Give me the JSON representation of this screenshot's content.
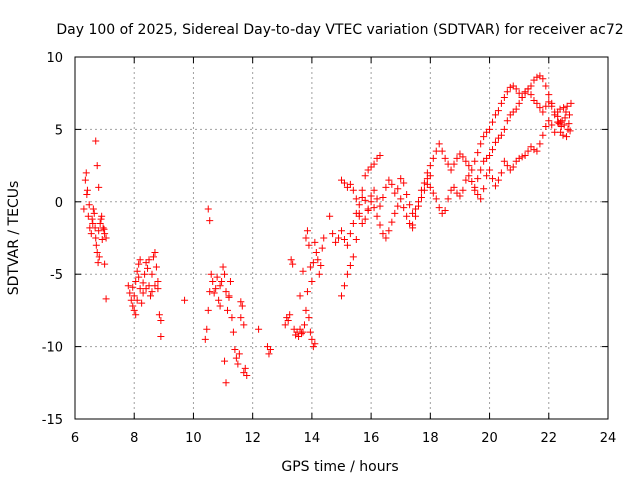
{
  "chart_data": {
    "type": "scatter",
    "title": "Day 100 of 2025, Sidereal Day-to-day VTEC variation (SDTVAR) for receiver ac72",
    "xlabel": "GPS time / hours",
    "ylabel": "SDTVAR / TECUs",
    "xlim": [
      6,
      24
    ],
    "ylim": [
      -15,
      10
    ],
    "x_ticks": [
      6,
      8,
      10,
      12,
      14,
      16,
      18,
      20,
      22,
      24
    ],
    "y_ticks": [
      -15,
      -10,
      -5,
      0,
      5,
      10
    ],
    "x_tick_labels": [
      "6",
      "8",
      "10",
      "12",
      "14",
      "16",
      "18",
      "20",
      "22",
      "24"
    ],
    "y_tick_labels": [
      "-15",
      "-10",
      "-5",
      "0",
      "5",
      "10"
    ],
    "grid": true,
    "marker": "+",
    "series": [
      {
        "name": "SDTVAR",
        "color": "#ff0000",
        "segments": [
          {
            "x": [
              6.3,
              6.35,
              6.4,
              6.45,
              6.5,
              6.55,
              6.6,
              6.65,
              6.7,
              6.75,
              6.8,
              6.85,
              6.9,
              6.95,
              7.0,
              7.05
            ],
            "y": [
              -0.5,
              1.5,
              0.5,
              -1.0,
              -1.8,
              -2.2,
              -1.5,
              -0.8,
              -2.5,
              -3.5,
              -2.0,
              -1.5,
              -1.0,
              -1.8,
              -2.2,
              -2.5
            ]
          },
          {
            "x": [
              6.38,
              6.42,
              6.48,
              6.58,
              6.62,
              6.68,
              6.72,
              6.78,
              6.82,
              6.88,
              6.92,
              6.98
            ],
            "y": [
              2.0,
              0.8,
              -0.2,
              -1.2,
              -0.5,
              -1.8,
              -3.0,
              -4.2,
              -3.8,
              -1.2,
              -2.6,
              -1.9
            ]
          },
          {
            "x": [
              6.7,
              6.75,
              6.8,
              7.0,
              7.05
            ],
            "y": [
              4.2,
              2.5,
              1.0,
              -4.3,
              -6.7
            ]
          },
          {
            "x": [
              7.8,
              7.85,
              7.9,
              7.95,
              8.0,
              8.05,
              8.1,
              8.15,
              8.2,
              8.25,
              8.3,
              8.35,
              8.4,
              8.45,
              8.5,
              8.55,
              8.6,
              8.65,
              8.7,
              8.75,
              8.8,
              8.85,
              8.9
            ],
            "y": [
              -5.8,
              -6.3,
              -6.8,
              -7.2,
              -6.5,
              -5.5,
              -4.8,
              -5.2,
              -6.0,
              -7.0,
              -6.3,
              -5.0,
              -4.2,
              -4.6,
              -5.8,
              -6.5,
              -5.0,
              -3.8,
              -3.5,
              -4.5,
              -5.5,
              -7.8,
              -8.2
            ]
          },
          {
            "x": [
              7.95,
              8.0,
              8.05,
              8.1,
              8.15,
              8.2,
              8.3,
              8.4,
              8.5,
              8.6,
              8.7,
              8.8,
              8.9
            ],
            "y": [
              -5.9,
              -7.5,
              -7.8,
              -6.8,
              -4.3,
              -4.0,
              -5.6,
              -6.0,
              -4.0,
              -6.2,
              -5.8,
              -6.0,
              -9.3
            ]
          },
          {
            "x": [
              9.7
            ],
            "y": [
              -6.8
            ]
          },
          {
            "x": [
              10.4,
              10.45,
              10.5,
              10.55,
              10.6,
              10.65,
              10.7,
              10.75,
              10.8,
              10.85,
              10.9,
              10.95,
              11.0,
              11.05,
              11.1,
              11.15,
              11.2,
              11.25,
              11.3,
              11.35,
              11.4,
              11.45,
              11.5,
              11.55,
              11.6,
              11.65,
              11.7,
              11.75,
              11.8
            ],
            "y": [
              -9.5,
              -8.8,
              -7.5,
              -6.2,
              -5.0,
              -5.5,
              -6.3,
              -6.0,
              -5.2,
              -6.8,
              -7.2,
              -5.5,
              -4.5,
              -5.0,
              -6.2,
              -7.5,
              -6.5,
              -5.5,
              -8.0,
              -9.0,
              -10.2,
              -10.8,
              -11.2,
              -10.5,
              -8.0,
              -7.2,
              -8.5,
              -11.5,
              -12.0
            ]
          },
          {
            "x": [
              10.5,
              10.55,
              10.9,
              11.05,
              11.1,
              11.2,
              11.6,
              11.7
            ],
            "y": [
              -0.5,
              -1.3,
              -5.8,
              -11.0,
              -12.5,
              -6.6,
              -6.9,
              -11.8
            ]
          },
          {
            "x": [
              12.2,
              12.5,
              12.55,
              12.6
            ],
            "y": [
              -8.8,
              -10.0,
              -10.5,
              -10.2
            ]
          },
          {
            "x": [
              13.1,
              13.15,
              13.2,
              13.25,
              13.3,
              13.35,
              13.4,
              13.45,
              13.5,
              13.55,
              13.6,
              13.65,
              13.7,
              13.75,
              13.8,
              13.85,
              13.9,
              13.95,
              14.0,
              14.05,
              14.1
            ],
            "y": [
              -8.5,
              -8.0,
              -8.2,
              -7.8,
              -4.0,
              -4.3,
              -8.8,
              -9.2,
              -9.0,
              -9.3,
              -8.8,
              -9.1,
              -9.0,
              -8.5,
              -7.5,
              -6.2,
              -8.0,
              -9.0,
              -9.5,
              -10.0,
              -9.8
            ]
          },
          {
            "x": [
              13.6,
              13.7,
              13.8,
              13.85,
              13.9,
              13.95,
              14.0,
              14.05,
              14.1,
              14.15,
              14.2,
              14.25,
              14.3,
              14.35,
              14.4
            ],
            "y": [
              -6.5,
              -4.8,
              -2.5,
              -2.0,
              -3.0,
              -4.5,
              -5.5,
              -4.2,
              -2.8,
              -3.5,
              -4.0,
              -5.0,
              -4.4,
              -3.2,
              -2.5
            ]
          },
          {
            "x": [
              14.6,
              14.7,
              14.8,
              14.9,
              15.0,
              15.1,
              15.2,
              15.3,
              15.4,
              15.5,
              15.6,
              15.7,
              15.8,
              15.9,
              16.0,
              16.1,
              16.2,
              16.3,
              16.4,
              16.5,
              16.6,
              16.7,
              16.8,
              16.9,
              17.0,
              17.1,
              17.2,
              17.3,
              17.4,
              17.5,
              17.6,
              17.7,
              17.8,
              17.9,
              18.0
            ],
            "y": [
              -1.0,
              -2.2,
              -2.8,
              -2.5,
              -2.0,
              -2.6,
              -3.0,
              -2.2,
              -1.5,
              -0.8,
              -0.2,
              0.3,
              0.1,
              -0.5,
              0.4,
              0.8,
              0.2,
              -0.3,
              0.3,
              1.0,
              1.5,
              1.2,
              0.6,
              0.9,
              1.6,
              1.3,
              0.5,
              -0.2,
              -0.8,
              -0.5,
              0.0,
              0.8,
              1.3,
              1.6,
              1.8
            ]
          },
          {
            "x": [
              15.0,
              15.1,
              15.2,
              15.3,
              15.4,
              15.5,
              15.6,
              15.7,
              15.8,
              15.9,
              16.0,
              16.1,
              16.2,
              16.3,
              16.4,
              16.5,
              16.6,
              16.7,
              16.8,
              16.9,
              17.0,
              17.1,
              17.2,
              17.3,
              17.4
            ],
            "y": [
              1.5,
              1.3,
              1.0,
              1.2,
              0.8,
              0.2,
              -0.8,
              -1.5,
              -1.2,
              -0.6,
              0.0,
              -0.4,
              -1.0,
              -1.6,
              -2.2,
              -2.5,
              -2.0,
              -1.4,
              -0.8,
              -0.3,
              0.2,
              -0.4,
              -1.0,
              -1.5,
              -1.8
            ]
          },
          {
            "x": [
              15.0,
              15.1,
              15.2,
              15.3,
              15.4,
              15.5,
              15.6,
              15.7,
              15.8,
              15.9,
              16.0,
              16.1,
              16.2,
              16.3
            ],
            "y": [
              -6.5,
              -5.8,
              -5.0,
              -4.4,
              -3.8,
              -2.6,
              -1.0,
              0.8,
              1.8,
              2.2,
              2.4,
              2.6,
              3.0,
              3.2
            ]
          },
          {
            "x": [
              17.9,
              18.0,
              18.1,
              18.2,
              18.3,
              18.4,
              18.5,
              18.6,
              18.7,
              18.8,
              18.9,
              19.0,
              19.1,
              19.2,
              19.3,
              19.4,
              19.5,
              19.6,
              19.7,
              19.8,
              19.9,
              20.0,
              20.1,
              20.2,
              20.3,
              20.4,
              20.5,
              20.6,
              20.7,
              20.8,
              20.9,
              21.0,
              21.1,
              21.2,
              21.3,
              21.4,
              21.5,
              21.6,
              21.7,
              21.8,
              21.9,
              22.0,
              22.1,
              22.2,
              22.3,
              22.4
            ],
            "y": [
              2.0,
              2.5,
              3.0,
              3.5,
              4.0,
              3.5,
              3.0,
              2.6,
              2.2,
              2.6,
              3.0,
              3.3,
              3.1,
              2.8,
              2.5,
              2.2,
              2.8,
              3.4,
              4.0,
              4.5,
              4.8,
              5.0,
              5.5,
              6.0,
              6.3,
              6.8,
              7.2,
              7.6,
              7.9,
              8.0,
              7.8,
              7.5,
              7.2,
              7.6,
              7.8,
              8.0,
              8.4,
              8.6,
              8.7,
              8.5,
              8.0,
              7.4,
              6.8,
              6.2,
              5.9,
              5.5
            ]
          },
          {
            "x": [
              17.4,
              17.5,
              17.6,
              17.7,
              17.8,
              17.9,
              18.0,
              18.1,
              18.2,
              18.3,
              18.4,
              18.5,
              18.6,
              18.7,
              18.8,
              18.9,
              19.0,
              19.1,
              19.2,
              19.3,
              19.4,
              19.5,
              19.6,
              19.7,
              19.8,
              19.9,
              20.0,
              20.1,
              20.2,
              20.3,
              20.4,
              20.5,
              20.6,
              20.7,
              20.8,
              20.9,
              21.0,
              21.1,
              21.2,
              21.3,
              21.4,
              21.5,
              21.6,
              21.7,
              21.8,
              21.9,
              22.0,
              22.1,
              22.2,
              22.3
            ],
            "y": [
              -1.6,
              -1.0,
              -0.3,
              0.3,
              0.8,
              1.2,
              1.0,
              0.6,
              0.2,
              -0.4,
              -0.8,
              -0.6,
              0.2,
              0.8,
              1.0,
              0.6,
              0.4,
              0.8,
              1.5,
              1.8,
              1.4,
              1.0,
              1.6,
              2.2,
              2.8,
              3.0,
              3.2,
              3.6,
              4.1,
              4.4,
              4.6,
              5.0,
              5.6,
              6.0,
              6.2,
              6.4,
              6.8,
              7.2,
              7.5,
              7.8,
              7.4,
              7.0,
              6.8,
              6.5,
              6.2,
              6.6,
              6.9,
              6.6,
              6.0,
              5.5
            ]
          },
          {
            "x": [
              19.5,
              19.6,
              19.7,
              19.8,
              19.9,
              20.0,
              20.1,
              20.2,
              20.3,
              20.4,
              20.5,
              20.6,
              20.7,
              20.8,
              20.9,
              21.0,
              21.1,
              21.2,
              21.3,
              21.4,
              21.5,
              21.6,
              21.7,
              21.8,
              21.9,
              22.0,
              22.1,
              22.2
            ],
            "y": [
              0.8,
              0.5,
              0.2,
              0.9,
              1.8,
              2.2,
              1.6,
              1.1,
              1.5,
              2.0,
              2.8,
              2.5,
              2.2,
              2.4,
              2.8,
              3.0,
              3.1,
              3.2,
              3.5,
              3.8,
              3.6,
              3.5,
              4.0,
              4.6,
              5.2,
              5.6,
              5.3,
              4.8
            ]
          },
          {
            "x": [
              22.3,
              22.35,
              22.4,
              22.45,
              22.5,
              22.55,
              22.6,
              22.65,
              22.7,
              22.75
            ],
            "y": [
              6.2,
              5.4,
              4.8,
              5.6,
              6.5,
              5.8,
              4.5,
              5.0,
              6.0,
              6.8
            ]
          },
          {
            "x": [
              22.32,
              22.38,
              22.42,
              22.48,
              22.52,
              22.58,
              22.62,
              22.68,
              22.72
            ],
            "y": [
              5.5,
              6.4,
              5.2,
              4.6,
              5.3,
              6.2,
              6.6,
              5.4,
              4.9
            ]
          }
        ]
      }
    ]
  }
}
